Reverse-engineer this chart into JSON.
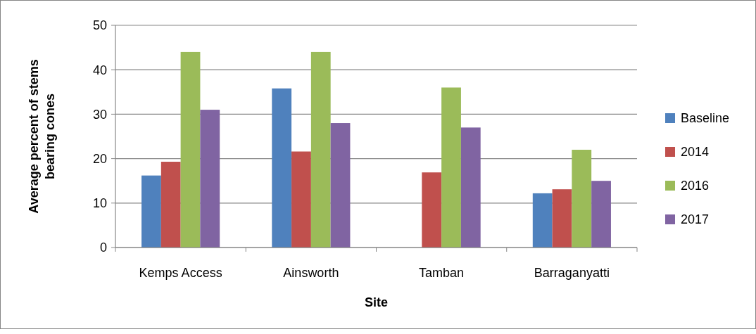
{
  "chart_data": {
    "type": "bar",
    "xlabel": "Site",
    "ylabel": "Average percent of stems\nbearing cones",
    "categories": [
      "Kemps Access",
      "Ainsworth",
      "Tamban",
      "Barraganyatti"
    ],
    "series": [
      {
        "name": "Baseline",
        "color": "#4f81bd",
        "values": [
          16.2,
          35.8,
          null,
          12.2
        ]
      },
      {
        "name": "2014",
        "color": "#c0504d",
        "values": [
          19.3,
          21.6,
          16.9,
          13.1
        ]
      },
      {
        "name": "2016",
        "color": "#9bbb59",
        "values": [
          44,
          44,
          36,
          22
        ]
      },
      {
        "name": "2017",
        "color": "#8064a2",
        "values": [
          31,
          28,
          27,
          15
        ]
      }
    ],
    "ylim": [
      0,
      50
    ],
    "yticks": [
      0,
      10,
      20,
      30,
      40,
      50
    ],
    "grid": "y",
    "legend": "right"
  }
}
